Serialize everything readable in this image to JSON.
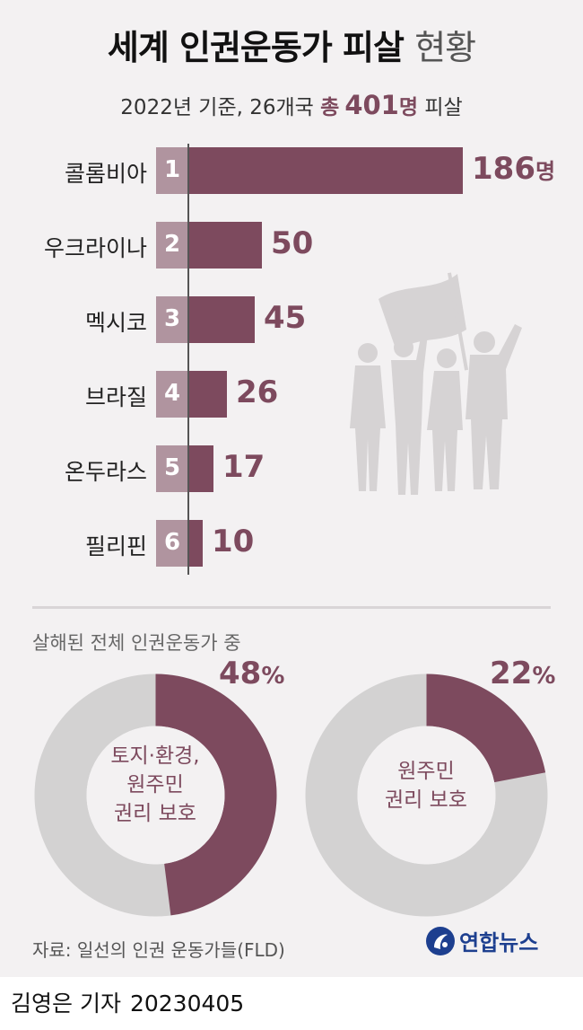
{
  "header": {
    "title_bold": "세계 인권운동가 피살",
    "title_light": "현황",
    "subtitle_prefix": "2022년 기준, 26개국",
    "subtitle_total_label": "총",
    "subtitle_total_value": "401",
    "subtitle_total_unit": "명",
    "subtitle_suffix": "피살"
  },
  "chart_data": [
    {
      "type": "bar",
      "orientation": "horizontal",
      "categories": [
        "콜롬비아",
        "우크라이나",
        "멕시코",
        "브라질",
        "온두라스",
        "필리핀"
      ],
      "ranks": [
        "1",
        "2",
        "3",
        "4",
        "5",
        "6"
      ],
      "values": [
        186,
        50,
        45,
        26,
        17,
        10
      ],
      "value_labels": [
        "186",
        "50",
        "45",
        "26",
        "17",
        "10"
      ],
      "unit": "명",
      "bar_color": "#7d4a5e",
      "rank_color": "#b0949f"
    },
    {
      "type": "pie",
      "style": "donut",
      "caption": "살해된 전체 인권운동가 중",
      "charts": [
        {
          "label_lines": [
            "토지·환경,",
            "원주민",
            "권리 보호"
          ],
          "value": 48,
          "value_label": "48",
          "unit": "%"
        },
        {
          "label_lines": [
            "원주민",
            "권리 보호"
          ],
          "value": 22,
          "value_label": "22",
          "unit": "%"
        }
      ],
      "highlight_color": "#7d4a5e",
      "remainder_color": "#d3d2d2"
    }
  ],
  "footer": {
    "source": "자료: 일선의 인권 운동가들(FLD)",
    "logo_text": "연합뉴스",
    "reporter": "김영은 기자",
    "date": "20230405"
  },
  "icons": {
    "silhouette": "protesters-with-flag-icon",
    "logo": "yonhap-logo-icon"
  }
}
